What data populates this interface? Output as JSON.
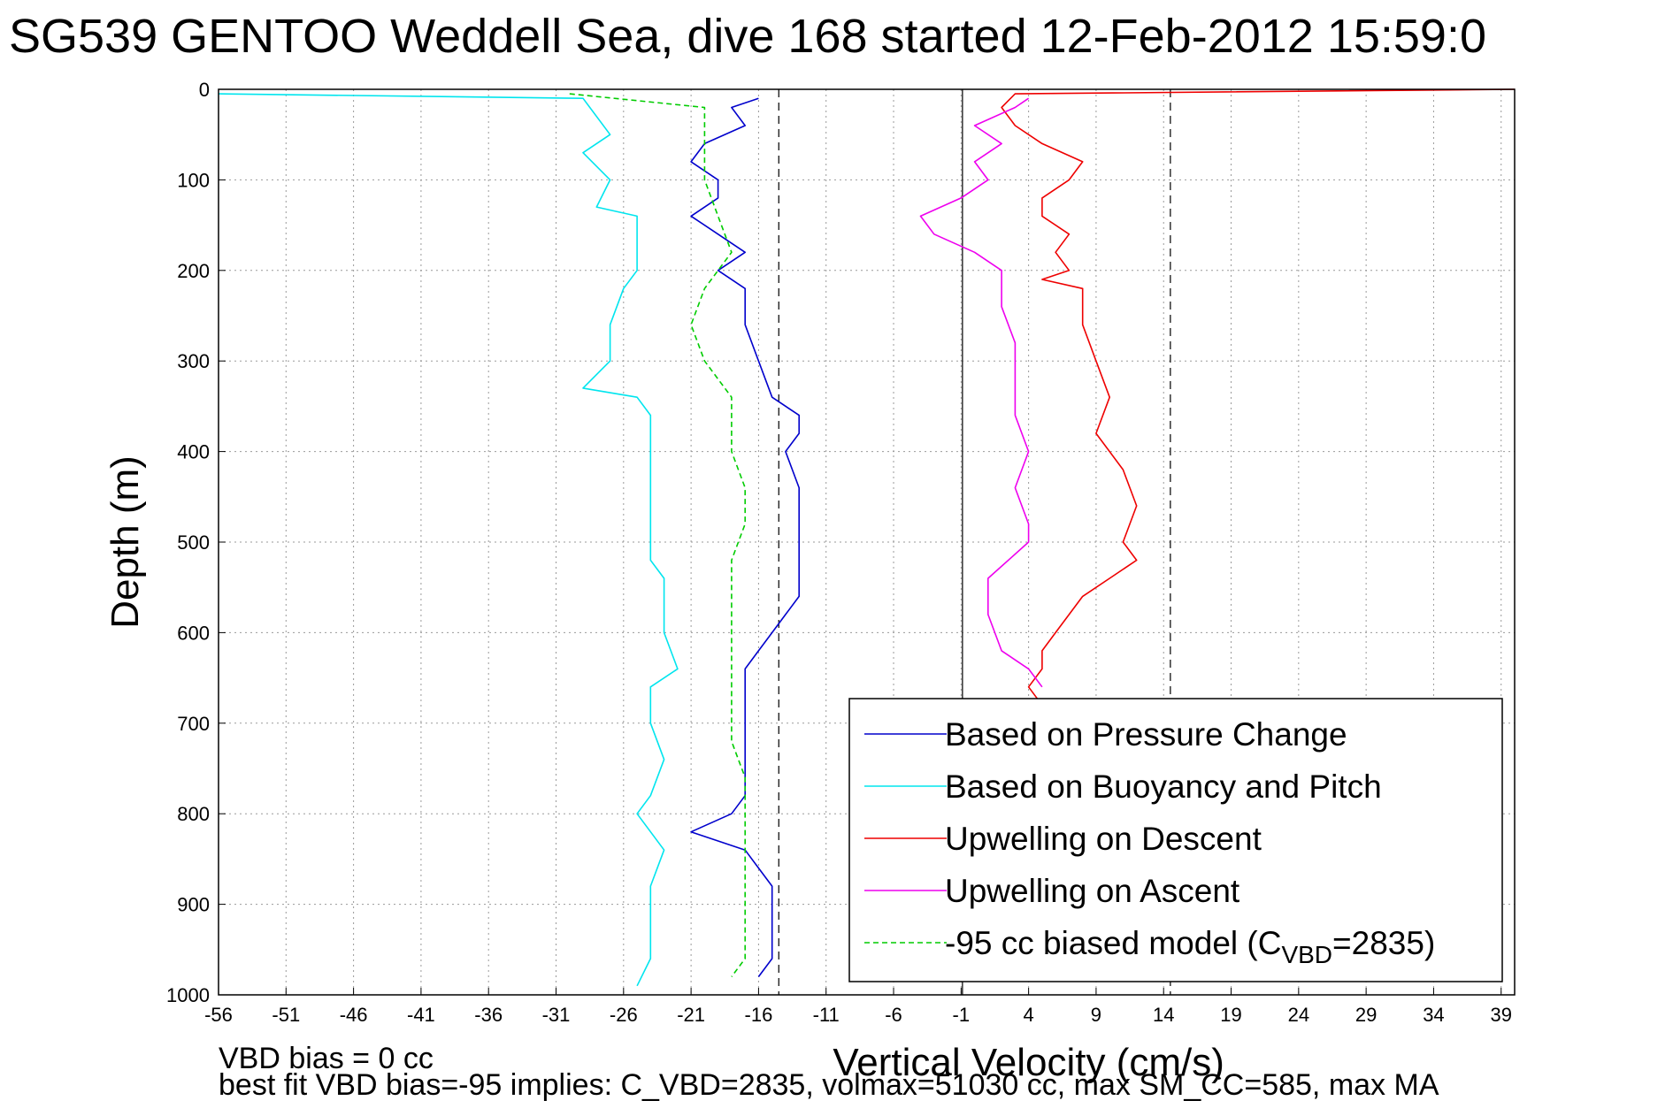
{
  "chart_data": {
    "type": "line",
    "title": "SG539 GENTOO Weddell Sea, dive 168 started 12-Feb-2012 15:59:0",
    "xlabel": "Vertical Velocity (cm/s)",
    "ylabel": "Depth (m)",
    "xlim": [
      -56,
      40
    ],
    "ylim": [
      0,
      1000
    ],
    "y_reversed": true,
    "grid": true,
    "x_ticks": [
      -56,
      -51,
      -46,
      -41,
      -36,
      -31,
      -26,
      -21,
      -16,
      -11,
      -6,
      -1,
      4,
      9,
      14,
      19,
      24,
      29,
      34,
      39
    ],
    "y_ticks": [
      0,
      100,
      200,
      300,
      400,
      500,
      600,
      700,
      800,
      900,
      1000
    ],
    "reference_lines": [
      {
        "x": -14.5,
        "style": "dashed"
      },
      {
        "x": -0.9,
        "style": "solid"
      },
      {
        "x": 14.5,
        "style": "dashed"
      }
    ],
    "legend_position": "bottom-right",
    "series": [
      {
        "name": "Based on Pressure Change",
        "color": "#0000cc",
        "style": "solid",
        "points": [
          [
            -16,
            10
          ],
          [
            -18,
            20
          ],
          [
            -17,
            40
          ],
          [
            -20,
            60
          ],
          [
            -21,
            80
          ],
          [
            -19,
            100
          ],
          [
            -19,
            120
          ],
          [
            -21,
            140
          ],
          [
            -19,
            160
          ],
          [
            -17,
            180
          ],
          [
            -19,
            200
          ],
          [
            -17,
            220
          ],
          [
            -17,
            260
          ],
          [
            -16,
            300
          ],
          [
            -15,
            340
          ],
          [
            -13,
            360
          ],
          [
            -13,
            380
          ],
          [
            -14,
            400
          ],
          [
            -13,
            440
          ],
          [
            -13,
            480
          ],
          [
            -13,
            520
          ],
          [
            -13,
            540
          ],
          [
            -13,
            560
          ],
          [
            -14,
            580
          ],
          [
            -15,
            600
          ],
          [
            -16,
            620
          ],
          [
            -17,
            640
          ],
          [
            -17,
            660
          ],
          [
            -17,
            700
          ],
          [
            -17,
            740
          ],
          [
            -17,
            780
          ],
          [
            -18,
            800
          ],
          [
            -21,
            820
          ],
          [
            -17,
            840
          ],
          [
            -16,
            860
          ],
          [
            -15,
            880
          ],
          [
            -15,
            900
          ],
          [
            -15,
            940
          ],
          [
            -15,
            960
          ],
          [
            -16,
            980
          ]
        ]
      },
      {
        "name": "Based on Buoyancy and Pitch",
        "color": "#00e5ee",
        "style": "solid",
        "points": [
          [
            -56,
            5
          ],
          [
            -29,
            10
          ],
          [
            -27,
            50
          ],
          [
            -29,
            70
          ],
          [
            -27,
            100
          ],
          [
            -28,
            130
          ],
          [
            -25,
            140
          ],
          [
            -25,
            180
          ],
          [
            -25,
            200
          ],
          [
            -26,
            220
          ],
          [
            -27,
            260
          ],
          [
            -27,
            300
          ],
          [
            -29,
            330
          ],
          [
            -25,
            340
          ],
          [
            -24,
            360
          ],
          [
            -24,
            400
          ],
          [
            -24,
            440
          ],
          [
            -24,
            480
          ],
          [
            -24,
            520
          ],
          [
            -23,
            540
          ],
          [
            -23,
            600
          ],
          [
            -22,
            640
          ],
          [
            -24,
            660
          ],
          [
            -24,
            700
          ],
          [
            -23,
            740
          ],
          [
            -24,
            780
          ],
          [
            -25,
            800
          ],
          [
            -23,
            840
          ],
          [
            -24,
            880
          ],
          [
            -24,
            920
          ],
          [
            -24,
            960
          ],
          [
            -25,
            990
          ]
        ]
      },
      {
        "name": "Upwelling on Descent",
        "color": "#ee0000",
        "style": "solid",
        "points": [
          [
            40,
            0
          ],
          [
            3,
            5
          ],
          [
            2,
            20
          ],
          [
            3,
            40
          ],
          [
            5,
            60
          ],
          [
            8,
            80
          ],
          [
            7,
            100
          ],
          [
            5,
            120
          ],
          [
            5,
            140
          ],
          [
            7,
            160
          ],
          [
            6,
            180
          ],
          [
            7,
            200
          ],
          [
            5,
            210
          ],
          [
            8,
            220
          ],
          [
            8,
            260
          ],
          [
            9,
            300
          ],
          [
            10,
            340
          ],
          [
            9,
            380
          ],
          [
            11,
            420
          ],
          [
            12,
            460
          ],
          [
            11,
            500
          ],
          [
            12,
            520
          ],
          [
            10,
            540
          ],
          [
            8,
            560
          ],
          [
            7,
            580
          ],
          [
            6,
            600
          ],
          [
            5,
            620
          ],
          [
            5,
            640
          ],
          [
            4,
            660
          ],
          [
            5,
            680
          ]
        ]
      },
      {
        "name": "Upwelling on Ascent",
        "color": "#ee00ee",
        "style": "solid",
        "points": [
          [
            4,
            10
          ],
          [
            3,
            20
          ],
          [
            0,
            40
          ],
          [
            2,
            60
          ],
          [
            0,
            80
          ],
          [
            1,
            100
          ],
          [
            -1,
            120
          ],
          [
            -4,
            140
          ],
          [
            -3,
            160
          ],
          [
            0,
            180
          ],
          [
            2,
            200
          ],
          [
            2,
            240
          ],
          [
            3,
            280
          ],
          [
            3,
            320
          ],
          [
            3,
            360
          ],
          [
            4,
            400
          ],
          [
            3,
            440
          ],
          [
            4,
            480
          ],
          [
            4,
            500
          ],
          [
            1,
            540
          ],
          [
            1,
            580
          ],
          [
            2,
            620
          ],
          [
            4,
            640
          ],
          [
            5,
            660
          ]
        ]
      },
      {
        "name": "-95 cc biased model (C<sub>VBD</sub>=2835)",
        "color": "#00cc00",
        "style": "dashed",
        "points": [
          [
            -30,
            5
          ],
          [
            -20,
            20
          ],
          [
            -20,
            60
          ],
          [
            -20,
            100
          ],
          [
            -19,
            140
          ],
          [
            -18,
            180
          ],
          [
            -20,
            220
          ],
          [
            -21,
            260
          ],
          [
            -20,
            300
          ],
          [
            -18,
            340
          ],
          [
            -18,
            360
          ],
          [
            -18,
            400
          ],
          [
            -17,
            440
          ],
          [
            -17,
            480
          ],
          [
            -18,
            520
          ],
          [
            -18,
            560
          ],
          [
            -18,
            600
          ],
          [
            -18,
            640
          ],
          [
            -18,
            680
          ],
          [
            -18,
            720
          ],
          [
            -17,
            760
          ],
          [
            -17,
            800
          ],
          [
            -17,
            840
          ],
          [
            -17,
            880
          ],
          [
            -17,
            920
          ],
          [
            -17,
            960
          ],
          [
            -18,
            980
          ]
        ]
      }
    ]
  },
  "footer": {
    "line1": "VBD bias = 0 cc",
    "line2": "best fit VBD bias=-95 implies: C_VBD=2835, volmax=51030 cc, max SM_CC=585, max MA"
  }
}
